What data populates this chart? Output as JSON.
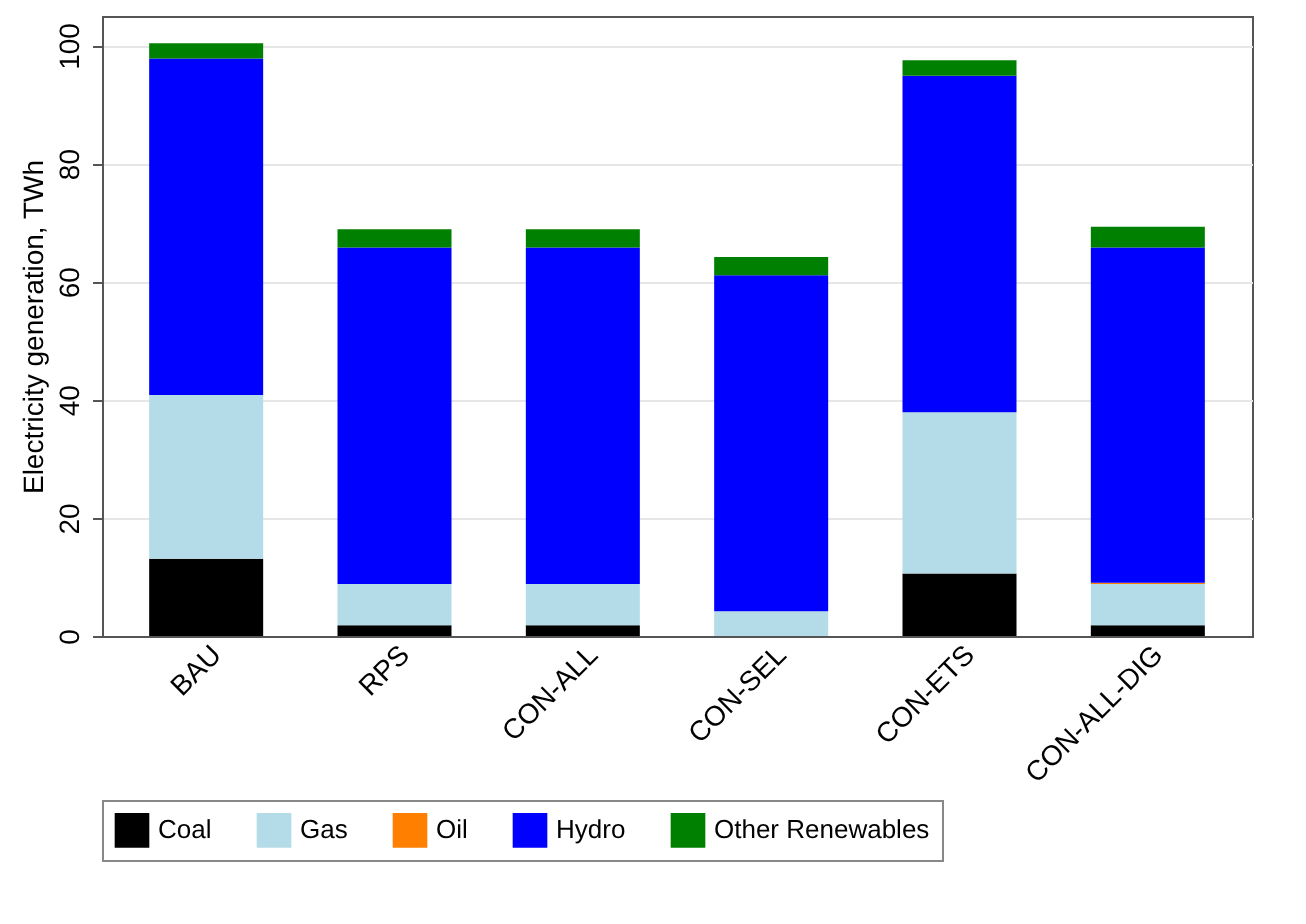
{
  "chart_data": {
    "type": "bar",
    "stacked": true,
    "ylabel": "Electricity generation, TWh",
    "categories": [
      "BAU",
      "RPS",
      "CON-ALL",
      "CON-SEL",
      "CON-ETS",
      "CON-ALL-DIG"
    ],
    "series": [
      {
        "name": "Coal",
        "color": "#000000",
        "values": [
          13.1,
          1.8,
          1.8,
          0,
          10.6,
          1.8
        ]
      },
      {
        "name": "Gas",
        "color": "#b4dce8",
        "values": [
          27.7,
          7.0,
          7.0,
          4.2,
          27.3,
          7.0
        ]
      },
      {
        "name": "Oil",
        "color": "#ff8000",
        "values": [
          0,
          0,
          0,
          0,
          0,
          0.2
        ]
      },
      {
        "name": "Hydro",
        "color": "#0000ff",
        "values": [
          57.0,
          57.0,
          57.0,
          56.9,
          57.0,
          56.8
        ]
      },
      {
        "name": "Other Renewables",
        "color": "#008000",
        "values": [
          2.6,
          3.1,
          3.1,
          3.1,
          2.6,
          3.5
        ]
      }
    ],
    "ylim": [
      0,
      105
    ],
    "yticks": [
      0,
      20,
      40,
      60,
      80,
      100
    ],
    "grid": "y",
    "legend": "bottom"
  }
}
